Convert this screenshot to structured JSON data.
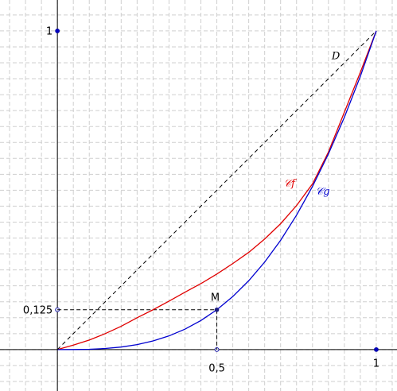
{
  "chart_data": {
    "type": "line",
    "xlim": [
      -0.18,
      1.065
    ],
    "ylim": [
      -0.13,
      1.097
    ],
    "xticks": [
      {
        "value": 0.5,
        "label": "0,5"
      },
      1
    ],
    "yticks": [
      {
        "value": 0.125,
        "label": "0,125"
      },
      1
    ],
    "grid": true,
    "grid_spacing": 0.05,
    "x": [
      0,
      0.05,
      0.1,
      0.15,
      0.2,
      0.25,
      0.3,
      0.35,
      0.4,
      0.45,
      0.5,
      0.55,
      0.6,
      0.65,
      0.7,
      0.75,
      0.8,
      0.85,
      0.9,
      0.95,
      1
    ],
    "series": [
      {
        "name": "𝒞f",
        "color": "#e00000",
        "values": [
          0,
          0.014,
          0.03,
          0.05,
          0.073,
          0.1,
          0.125,
          0.152,
          0.18,
          0.207,
          0.237,
          0.27,
          0.305,
          0.347,
          0.395,
          0.452,
          0.52,
          0.62,
          0.745,
          0.87,
          1
        ]
      },
      {
        "name": "𝒞g",
        "color": "#0000d0",
        "values": [
          0,
          0.000125,
          0.001,
          0.003375,
          0.008,
          0.015625,
          0.027,
          0.042875,
          0.064,
          0.091125,
          0.125,
          0.166375,
          0.216,
          0.274625,
          0.343,
          0.421875,
          0.512,
          0.614125,
          0.729,
          0.857375,
          1
        ]
      },
      {
        "name": "D",
        "color": "#000000",
        "dashed": true,
        "x": [
          0,
          1
        ],
        "values": [
          0,
          1
        ]
      }
    ],
    "annotations": [
      {
        "label": "M",
        "x": 0.5,
        "y": 0.125
      }
    ]
  }
}
